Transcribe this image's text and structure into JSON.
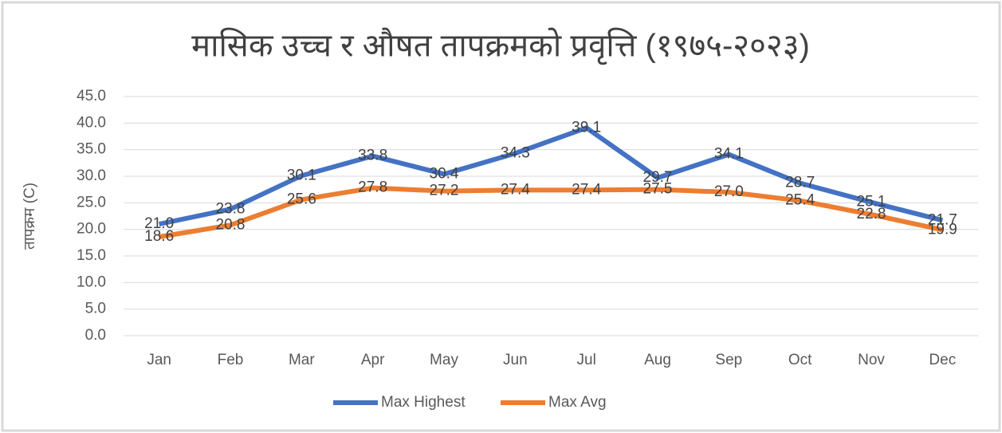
{
  "chart_data": {
    "type": "line",
    "title": "मासिक उच्च र औषत तापक्रमको प्रवृत्ति (१९७५-२०२३)",
    "y_label": "तापक्रम (C)",
    "categories": [
      "Jan",
      "Feb",
      "Mar",
      "Apr",
      "May",
      "Jun",
      "Jul",
      "Aug",
      "Sep",
      "Oct",
      "Nov",
      "Dec"
    ],
    "series": [
      {
        "name": "Max Highest",
        "color": "#4472c4",
        "values": [
          21.0,
          23.8,
          30.1,
          33.8,
          30.4,
          34.3,
          39.1,
          29.7,
          34.1,
          28.7,
          25.1,
          21.7
        ],
        "value_labels": [
          "21.0",
          "23.8",
          "30.1",
          "33.8",
          "30.4",
          "34.3",
          "39.1",
          "29.7",
          "34.1",
          "28.7",
          "25.1",
          "21.7"
        ]
      },
      {
        "name": "Max Avg",
        "color": "#ed7d31",
        "values": [
          18.6,
          20.8,
          25.6,
          27.8,
          27.2,
          27.4,
          27.4,
          27.5,
          27.0,
          25.4,
          22.8,
          19.9
        ],
        "value_labels": [
          "18.6",
          "20.8",
          "25.6",
          "27.8",
          "27.2",
          "27.4",
          "27.4",
          "27.5",
          "27.0",
          "25.4",
          "22.8",
          "19.9"
        ]
      }
    ],
    "ylim": [
      0,
      45
    ],
    "yticks": [
      {
        "value": 0,
        "label": "0.0"
      },
      {
        "value": 5,
        "label": "5.0"
      },
      {
        "value": 10,
        "label": "10.0"
      },
      {
        "value": 15,
        "label": "15.0"
      },
      {
        "value": 20,
        "label": "20.0"
      },
      {
        "value": 25,
        "label": "25.0"
      },
      {
        "value": 30,
        "label": "30.0"
      },
      {
        "value": 35,
        "label": "35.0"
      },
      {
        "value": 40,
        "label": "40.0"
      },
      {
        "value": 45,
        "label": "45.0"
      }
    ],
    "grid": true,
    "legend": "bottom"
  }
}
